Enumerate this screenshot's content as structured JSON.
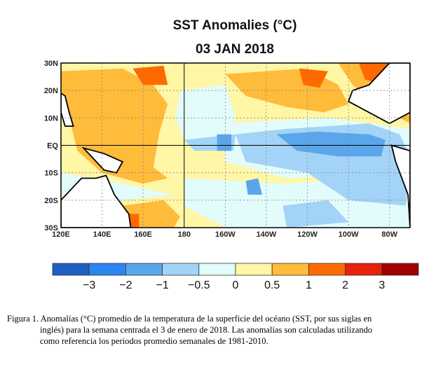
{
  "title": "SST Anomalies (°C)",
  "subtitle": "03 JAN 2018",
  "map": {
    "lat_labels": [
      "30N",
      "20N",
      "10N",
      "EQ",
      "10S",
      "20S",
      "30S"
    ],
    "lon_labels": [
      "120E",
      "140E",
      "160E",
      "180",
      "160W",
      "140W",
      "120W",
      "100W",
      "80W"
    ],
    "lat_range": [
      -30,
      30
    ],
    "lon_range_deg_east": [
      120,
      290
    ]
  },
  "colorbar": {
    "colors": [
      "#1f5fc4",
      "#2c86ef",
      "#5ba6ea",
      "#a3d4f7",
      "#e2fcfc",
      "#fff6a6",
      "#ffbb3a",
      "#ff6a00",
      "#e8200c",
      "#a00000"
    ],
    "tick_labels": [
      "−3",
      "−2",
      "−1",
      "−0.5",
      "0",
      "0.5",
      "1",
      "2",
      "3"
    ]
  },
  "caption": {
    "line1": "Figura 1. Anomalías (°C) promedio de la temperatura de la superficie del océano (SST, por sus siglas en",
    "line2": "inglés) para la semana centrada el 3 de enero de 2018. Las anomalías son calculadas utilizando",
    "line3": "como referencia los periodos promedio semanales de 1981-2010."
  }
}
